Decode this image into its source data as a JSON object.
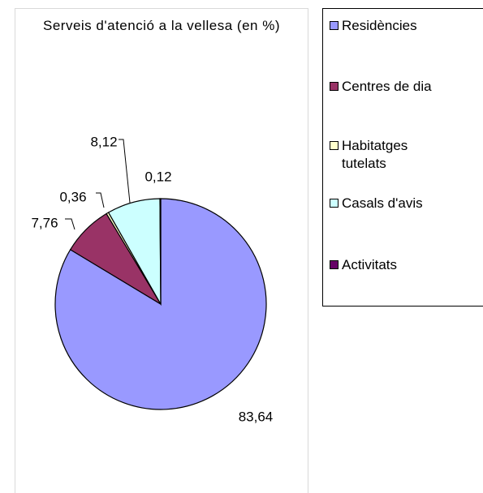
{
  "chart_data": {
    "type": "pie",
    "title": "Serveis d'atenció a la vellesa (en %)",
    "categories": [
      "Residències",
      "Centres de dia",
      "Habitatges tutelats",
      "Casals d'avis",
      "Activitats"
    ],
    "values": [
      83.64,
      7.76,
      0.36,
      8.12,
      0.12
    ],
    "value_labels": [
      "83,64",
      "7,76",
      "0,36",
      "8,12",
      "0,12"
    ],
    "colors": [
      "#9999ff",
      "#993366",
      "#ffffcc",
      "#ccffff",
      "#660066"
    ],
    "legend": "right"
  }
}
